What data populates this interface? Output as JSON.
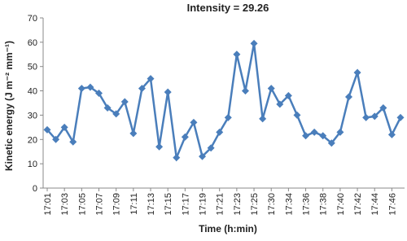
{
  "chart_data": {
    "type": "line",
    "title": "Intensity = 29.26",
    "x_label": "Time (h:min)",
    "y_label": "Kinetic energy (J m⁻² mm⁻¹)",
    "categories": [
      "17:01",
      null,
      "17:03",
      null,
      "17:05",
      null,
      "17:07",
      null,
      "17:09",
      null,
      "17:11",
      null,
      "17:13",
      null,
      "17:15",
      null,
      "17:17",
      null,
      "17:19",
      null,
      "17:21",
      null,
      "17:23",
      null,
      "17:25",
      null,
      "17:30",
      null,
      "17:34",
      null,
      "17:36",
      null,
      "17:38",
      null,
      "17:40",
      null,
      "17:42",
      null,
      "17:44",
      null,
      "17:46",
      null
    ],
    "series": [
      {
        "color": "#4a7ebb",
        "values": [
          24,
          20,
          25,
          19,
          41,
          41.5,
          39,
          33,
          30.5,
          35.5,
          22.5,
          41,
          45,
          17,
          39.5,
          12.5,
          21,
          27,
          13,
          16.5,
          23,
          29,
          55,
          40,
          59.5,
          28.5,
          41,
          34.5,
          38,
          30,
          21.5,
          23,
          21.5,
          18.5,
          23,
          37.5,
          47.5,
          29,
          29.5,
          33,
          22,
          29
        ]
      }
    ],
    "ylim": [
      0,
      70
    ],
    "yticks": [
      0,
      10,
      20,
      30,
      40,
      50,
      60,
      70
    ],
    "grid": false
  }
}
